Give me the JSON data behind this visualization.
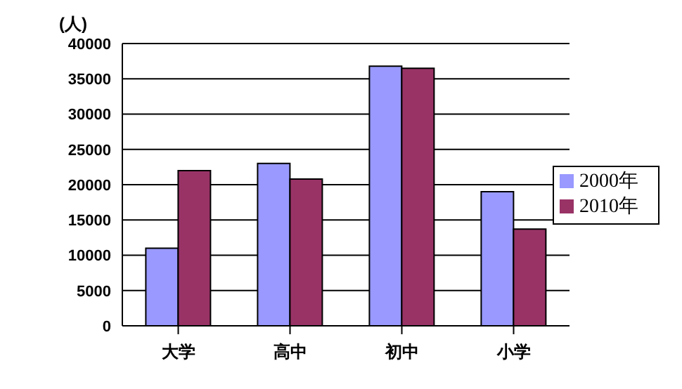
{
  "chart_data": {
    "type": "bar",
    "ylabel": "(人)",
    "categories": [
      "大学",
      "高中",
      "初中",
      "小学"
    ],
    "series": [
      {
        "name": "2000年",
        "color": "#9999ff",
        "values": [
          11000,
          23000,
          36800,
          19000
        ]
      },
      {
        "name": "2010年",
        "color": "#993366",
        "values": [
          22000,
          20800,
          36500,
          13700
        ]
      }
    ],
    "ylim": [
      0,
      40000
    ],
    "yticks": [
      0,
      5000,
      10000,
      15000,
      20000,
      25000,
      30000,
      35000,
      40000
    ],
    "grid": "y",
    "legend": "right"
  }
}
